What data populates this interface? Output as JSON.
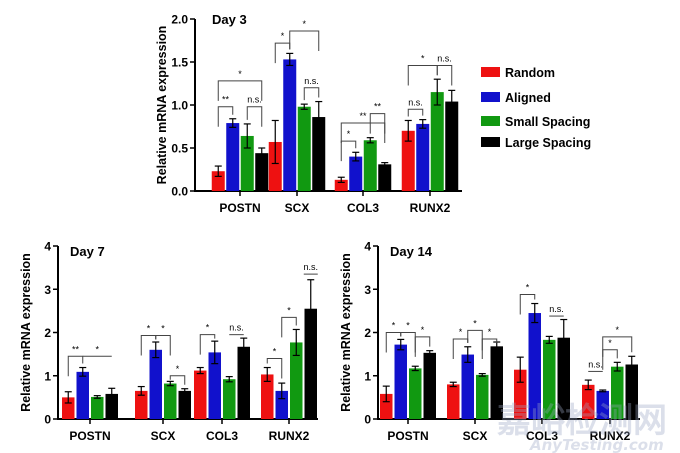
{
  "colors": {
    "Random": "#ee1111",
    "Aligned": "#1111cc",
    "Small Spacing": "#119911",
    "Large Spacing": "#000000"
  },
  "legend": {
    "entries": [
      "Random",
      "Aligned",
      "Small Spacing",
      "Large Spacing"
    ],
    "placement": "right of Day 3 panel"
  },
  "watermark": {
    "text": "嘉峪检测网",
    "subtext": "AnyTesting.com"
  },
  "chart_data": [
    {
      "type": "bar",
      "title": "Day 3",
      "xlabel": "",
      "ylabel": "Relative mRNA expression",
      "ylim": [
        0,
        2.0
      ],
      "yticks": [
        0.0,
        0.5,
        1.0,
        1.5,
        2.0
      ],
      "ytick_labels": [
        "0.0",
        "0.5",
        "1.0",
        "1.5",
        "2.0"
      ],
      "categories": [
        "POSTN",
        "SCX",
        "COL3",
        "RUNX2"
      ],
      "series": [
        {
          "name": "Random",
          "values": [
            0.23,
            0.57,
            0.13,
            0.7
          ],
          "errors": [
            0.06,
            0.25,
            0.03,
            0.12
          ]
        },
        {
          "name": "Aligned",
          "values": [
            0.79,
            1.53,
            0.4,
            0.78
          ],
          "errors": [
            0.05,
            0.07,
            0.05,
            0.05
          ]
        },
        {
          "name": "Small Spacing",
          "values": [
            0.64,
            0.98,
            0.59,
            1.15
          ],
          "errors": [
            0.14,
            0.03,
            0.03,
            0.15
          ]
        },
        {
          "name": "Large Spacing",
          "values": [
            0.44,
            0.86,
            0.31,
            1.04
          ],
          "errors": [
            0.06,
            0.18,
            0.02,
            0.13
          ]
        }
      ],
      "annotations": [
        {
          "cat": 0,
          "from": 0,
          "to": 1,
          "y": 0.98,
          "label": "**"
        },
        {
          "cat": 0,
          "from": 2,
          "to": 3,
          "y": 0.98,
          "label": "n.s."
        },
        {
          "cat": 0,
          "from": 0,
          "to": 3,
          "y": 1.28,
          "label": "*"
        },
        {
          "cat": 1,
          "from": 0,
          "to": 1,
          "y": 1.72,
          "label": "*"
        },
        {
          "cat": 1,
          "from": 1,
          "to": 3,
          "y": 1.86,
          "label": "*"
        },
        {
          "cat": 1,
          "from": 2,
          "to": 3,
          "y": 1.2,
          "label": "n.s."
        },
        {
          "cat": 2,
          "from": 0,
          "to": 1,
          "y": 0.58,
          "label": "*"
        },
        {
          "cat": 2,
          "from": 0,
          "to": 3,
          "y": 0.79,
          "label": "**"
        },
        {
          "cat": 2,
          "from": 2,
          "to": 3,
          "y": 0.9,
          "label": "**"
        },
        {
          "cat": 3,
          "from": 0,
          "to": 1,
          "y": 0.95,
          "label": "n.s."
        },
        {
          "cat": 3,
          "from": 0,
          "to": 2,
          "y": 1.46,
          "label": "*"
        },
        {
          "cat": 3,
          "from": 2,
          "to": 3,
          "y": 1.46,
          "label": "n.s."
        }
      ]
    },
    {
      "type": "bar",
      "title": "Day 7",
      "xlabel": "",
      "ylabel": "Relative mRNA expression",
      "ylim": [
        0,
        4
      ],
      "yticks": [
        0,
        1,
        2,
        3,
        4
      ],
      "ytick_labels": [
        "0",
        "1",
        "2",
        "3",
        "4"
      ],
      "categories": [
        "POSTN",
        "SCX",
        "COL3",
        "RUNX2"
      ],
      "series": [
        {
          "name": "Random",
          "values": [
            0.5,
            0.65,
            1.12,
            1.03
          ],
          "errors": [
            0.13,
            0.1,
            0.07,
            0.16
          ]
        },
        {
          "name": "Aligned",
          "values": [
            1.09,
            1.6,
            1.54,
            0.65
          ],
          "errors": [
            0.1,
            0.18,
            0.26,
            0.18
          ]
        },
        {
          "name": "Small Spacing",
          "values": [
            0.51,
            0.82,
            0.92,
            1.77
          ],
          "errors": [
            0.03,
            0.05,
            0.06,
            0.3
          ]
        },
        {
          "name": "Large Spacing",
          "values": [
            0.58,
            0.65,
            1.67,
            2.55
          ],
          "errors": [
            0.13,
            0.05,
            0.2,
            0.67
          ]
        }
      ],
      "annotations": [
        {
          "cat": 0,
          "from": 0,
          "to": 1,
          "y": 1.45,
          "label": "**"
        },
        {
          "cat": 0,
          "from": 1,
          "to": 3,
          "y": 1.45,
          "label": "*",
          "line_only": true
        },
        {
          "cat": 1,
          "from": 0,
          "to": 1,
          "y": 1.93,
          "label": "*"
        },
        {
          "cat": 1,
          "from": 1,
          "to": 2,
          "y": 1.93,
          "label": "*"
        },
        {
          "cat": 1,
          "from": 2,
          "to": 3,
          "y": 1.0,
          "label": "*"
        },
        {
          "cat": 2,
          "from": 0,
          "to": 1,
          "y": 1.95,
          "label": "*"
        },
        {
          "cat": 2,
          "from": 2,
          "to": 3,
          "y": 1.95,
          "label": "n.s.",
          "line_only": true
        },
        {
          "cat": 3,
          "from": 0,
          "to": 1,
          "y": 1.4,
          "label": "*"
        },
        {
          "cat": 3,
          "from": 1,
          "to": 2,
          "y": 2.35,
          "label": "*"
        },
        {
          "cat": 3,
          "from": 3,
          "to": 3,
          "y": 3.35,
          "label": "n.s.",
          "line_only": true
        }
      ]
    },
    {
      "type": "bar",
      "title": "Day 14",
      "xlabel": "",
      "ylabel": "Relative mRNA expression",
      "ylim": [
        0,
        4
      ],
      "yticks": [
        0,
        1,
        2,
        3,
        4
      ],
      "ytick_labels": [
        "0",
        "1",
        "2",
        "3",
        "4"
      ],
      "categories": [
        "POSTN",
        "SCX",
        "COL3",
        "RUNX2"
      ],
      "series": [
        {
          "name": "Random",
          "values": [
            0.58,
            0.8,
            1.14,
            0.79
          ],
          "errors": [
            0.18,
            0.05,
            0.29,
            0.11
          ]
        },
        {
          "name": "Aligned",
          "values": [
            1.72,
            1.49,
            2.45,
            0.65
          ],
          "errors": [
            0.12,
            0.18,
            0.22,
            0.02
          ]
        },
        {
          "name": "Small Spacing",
          "values": [
            1.17,
            1.02,
            1.83,
            1.21
          ],
          "errors": [
            0.05,
            0.03,
            0.08,
            0.1
          ]
        },
        {
          "name": "Large Spacing",
          "values": [
            1.53,
            1.68,
            1.88,
            1.26
          ],
          "errors": [
            0.05,
            0.1,
            0.42,
            0.19
          ]
        }
      ],
      "annotations": [
        {
          "cat": 0,
          "from": 0,
          "to": 1,
          "y": 2.0,
          "label": "*"
        },
        {
          "cat": 0,
          "from": 1,
          "to": 2,
          "y": 2.0,
          "label": "*"
        },
        {
          "cat": 0,
          "from": 2,
          "to": 3,
          "y": 1.9,
          "label": "*"
        },
        {
          "cat": 1,
          "from": 0,
          "to": 1,
          "y": 1.85,
          "label": "*"
        },
        {
          "cat": 1,
          "from": 1,
          "to": 2,
          "y": 2.05,
          "label": "*"
        },
        {
          "cat": 1,
          "from": 2,
          "to": 3,
          "y": 1.85,
          "label": "*"
        },
        {
          "cat": 2,
          "from": 0,
          "to": 1,
          "y": 2.88,
          "label": "*"
        },
        {
          "cat": 2,
          "from": 2,
          "to": 3,
          "y": 2.38,
          "label": "n.s.",
          "line_only": true
        },
        {
          "cat": 3,
          "from": 0,
          "to": 1,
          "y": 1.1,
          "label": "n.s.",
          "line_only": true
        },
        {
          "cat": 3,
          "from": 1,
          "to": 2,
          "y": 1.6,
          "label": "*"
        },
        {
          "cat": 3,
          "from": 1,
          "to": 3,
          "y": 1.9,
          "label": "*"
        }
      ]
    }
  ]
}
